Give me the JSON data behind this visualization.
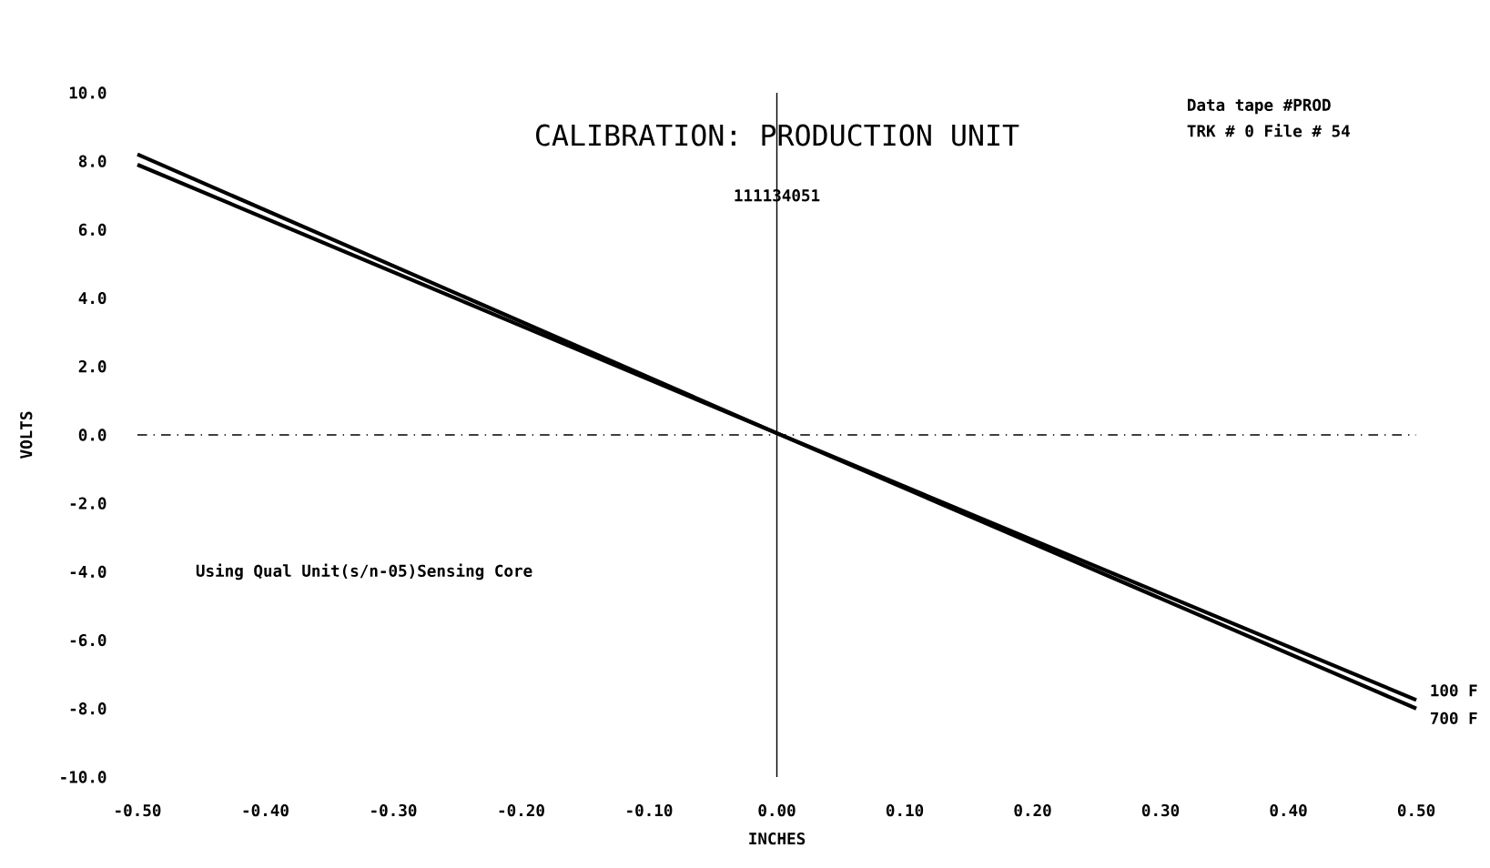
{
  "chart_data": {
    "type": "line",
    "title": "CALIBRATION: PRODUCTION UNIT",
    "subtitle": "111134051",
    "xlabel": "INCHES",
    "ylabel": "VOLTS",
    "x": [
      -0.5,
      0,
      0.5
    ],
    "series": [
      {
        "name": "100 F",
        "color": "#000000",
        "values": [
          7.9,
          0.05,
          -7.75
        ]
      },
      {
        "name": "700 F",
        "color": "#000000",
        "values": [
          8.2,
          0.05,
          -8.0
        ]
      }
    ],
    "xlim": [
      -0.5,
      0.5
    ],
    "ylim": [
      -10,
      10
    ],
    "xticks": [
      {
        "value": -0.5,
        "label": "-0.50"
      },
      {
        "value": -0.4,
        "label": "-0.40"
      },
      {
        "value": -0.3,
        "label": "-0.30"
      },
      {
        "value": -0.2,
        "label": "-0.20"
      },
      {
        "value": -0.1,
        "label": "-0.10"
      },
      {
        "value": 0,
        "label": "0.00"
      },
      {
        "value": 0.1,
        "label": "0.10"
      },
      {
        "value": 0.2,
        "label": "0.20"
      },
      {
        "value": 0.3,
        "label": "0.30"
      },
      {
        "value": 0.4,
        "label": "0.40"
      },
      {
        "value": 0.5,
        "label": "0.50"
      }
    ],
    "yticks": [
      {
        "value": -10,
        "label": "-10.0"
      },
      {
        "value": -8,
        "label": "-8.0"
      },
      {
        "value": -6,
        "label": "-6.0"
      },
      {
        "value": -4,
        "label": "-4.0"
      },
      {
        "value": -2,
        "label": "-2.0"
      },
      {
        "value": 0,
        "label": "0.0"
      },
      {
        "value": 2,
        "label": "2.0"
      },
      {
        "value": 4,
        "label": "4.0"
      },
      {
        "value": 6,
        "label": "6.0"
      },
      {
        "value": 8,
        "label": "8.0"
      },
      {
        "value": 10,
        "label": "10.0"
      }
    ],
    "ref_lines": [
      {
        "axis": "x",
        "value": 0,
        "color": "#000000",
        "line_style": "solid"
      },
      {
        "axis": "y",
        "value": 0,
        "color": "#000000",
        "line_style": "dashed"
      }
    ],
    "annotations": [
      "Data tape #PROD",
      "TRK # 0 File # 54",
      "Using Qual Unit(s/n-05)Sensing Core"
    ],
    "grid": false
  }
}
